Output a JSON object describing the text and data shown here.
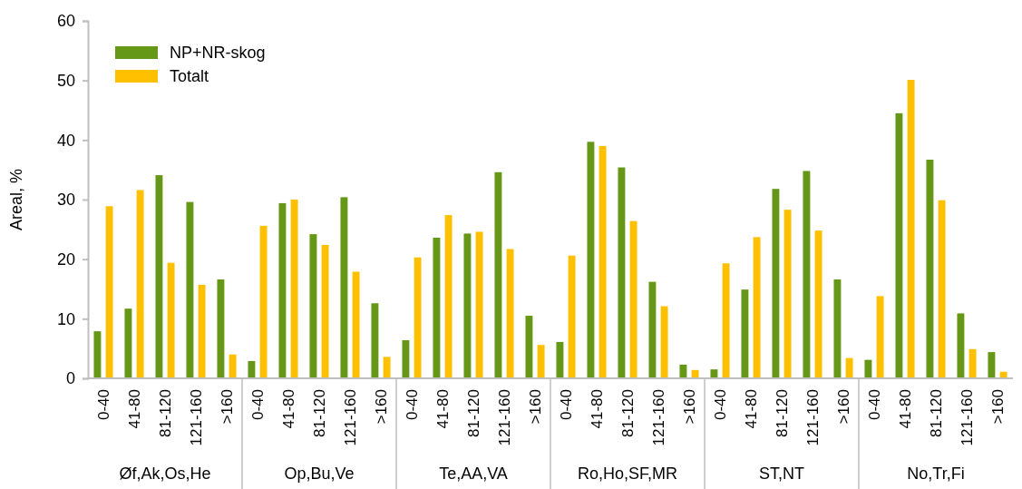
{
  "chart_data": {
    "type": "bar",
    "ylabel": "Areal, %",
    "categories": [
      "0-40",
      "41-80",
      "81-120",
      "121-160",
      ">160",
      "0-40",
      "41-80",
      "81-120",
      "121-160",
      ">160",
      "0-40",
      "41-80",
      "81-120",
      "121-160",
      ">160",
      "0-40",
      "41-80",
      "81-120",
      "121-160",
      ">160",
      "0-40",
      "41-80",
      "81-120",
      "121-160",
      ">160",
      "0-40",
      "41-80",
      "81-120",
      "121-160",
      ">160"
    ],
    "series": [
      {
        "name": "NP+NR-skog",
        "color": "#669817",
        "values": [
          7.9,
          11.7,
          34.1,
          29.6,
          16.6,
          2.9,
          29.4,
          24.2,
          30.4,
          12.6,
          6.4,
          23.6,
          24.3,
          34.6,
          10.5,
          6.1,
          39.7,
          35.4,
          16.2,
          2.3,
          1.5,
          14.9,
          31.8,
          34.8,
          16.6,
          3.1,
          44.5,
          36.7,
          10.9,
          4.4
        ]
      },
      {
        "name": "Totalt",
        "color": "#ffc000",
        "values": [
          28.9,
          31.6,
          19.4,
          15.7,
          4.0,
          25.6,
          30.0,
          22.4,
          17.9,
          3.6,
          20.3,
          27.4,
          24.6,
          21.7,
          5.6,
          20.6,
          39.0,
          26.4,
          12.1,
          1.4,
          19.3,
          23.7,
          28.3,
          24.8,
          3.4,
          13.8,
          50.1,
          29.9,
          4.9,
          1.1
        ]
      }
    ],
    "annotations": [
      "Øf,Ak,Os,He",
      "Op,Bu,Ve",
      "Te,AA,VA",
      "Ro,Ho,SF,MR",
      "ST,NT",
      "No,Tr,Fi"
    ],
    "ylim": [
      0,
      60
    ],
    "yticks": [
      0,
      10,
      20,
      30,
      40,
      50,
      60
    ],
    "grid": false,
    "legend": "top left"
  }
}
